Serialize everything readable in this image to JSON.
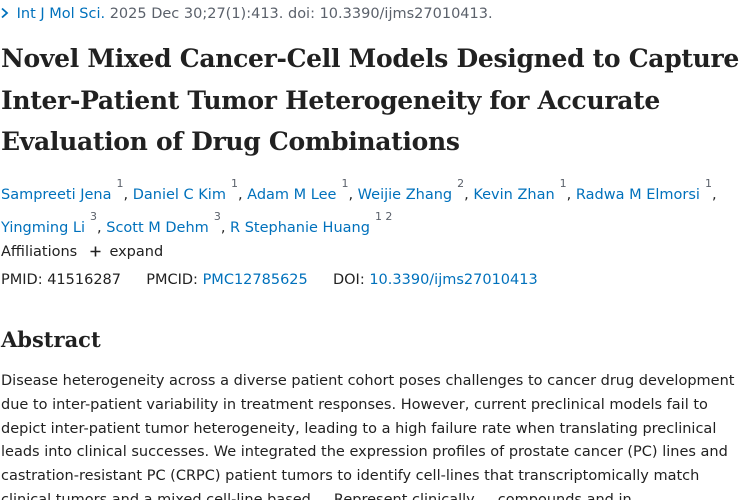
{
  "citation": {
    "chevron_icon": "chevron-right-icon",
    "journal": "Int J Mol Sci.",
    "details": "2025 Dec 30;27(1):413. doi: 10.3390/ijms27010413."
  },
  "article": {
    "title_lines": [
      "Novel Mixed Cancer-Cell Models Designed to Capture",
      "Inter-Patient Tumor Heterogeneity for Accurate",
      "Evaluation of Drug Combinations"
    ]
  },
  "authors": [
    {
      "name": "Sampreeti Jena",
      "aff": "1"
    },
    {
      "name": "Daniel C Kim",
      "aff": "1"
    },
    {
      "name": "Adam M Lee",
      "aff": "1"
    },
    {
      "name": "Weijie Zhang",
      "aff": "2"
    },
    {
      "name": "Kevin Zhan",
      "aff": "1"
    },
    {
      "name": "Radwa M Elmorsi",
      "aff": "1"
    },
    {
      "name": "Yingming Li",
      "aff": "3"
    },
    {
      "name": "Scott M Dehm",
      "aff": "3"
    },
    {
      "name": "R Stephanie Huang",
      "aff": "1 2"
    }
  ],
  "affiliations": {
    "label": "Affiliations",
    "expand_icon": "plus-icon",
    "expand_label": "expand"
  },
  "identifiers": {
    "pmid_label": "PMID:",
    "pmid": "41516287",
    "pmcid_label": "PMCID:",
    "pmcid": "PMC12785625",
    "doi_label": "DOI:",
    "doi": "10.3390/ijms27010413"
  },
  "abstract": {
    "heading": "Abstract",
    "lines": [
      "Disease heterogeneity across a diverse patient cohort poses challenges to cancer drug development",
      "due to inter-patient variability in treatment responses. However, current preclinical models fail to",
      "depict inter-patient tumor heterogeneity, leading to a high failure rate when translating preclinical",
      "leads into clinical successes. We integrated the expression profiles of prostate cancer (PC) lines and",
      "castration-resistant PC (CRPC) patient tumors to identify cell-lines that transcriptomically match",
      "clinical tumors and a mixed cell-line based ... Represent clinically ... compounds and in"
    ]
  }
}
